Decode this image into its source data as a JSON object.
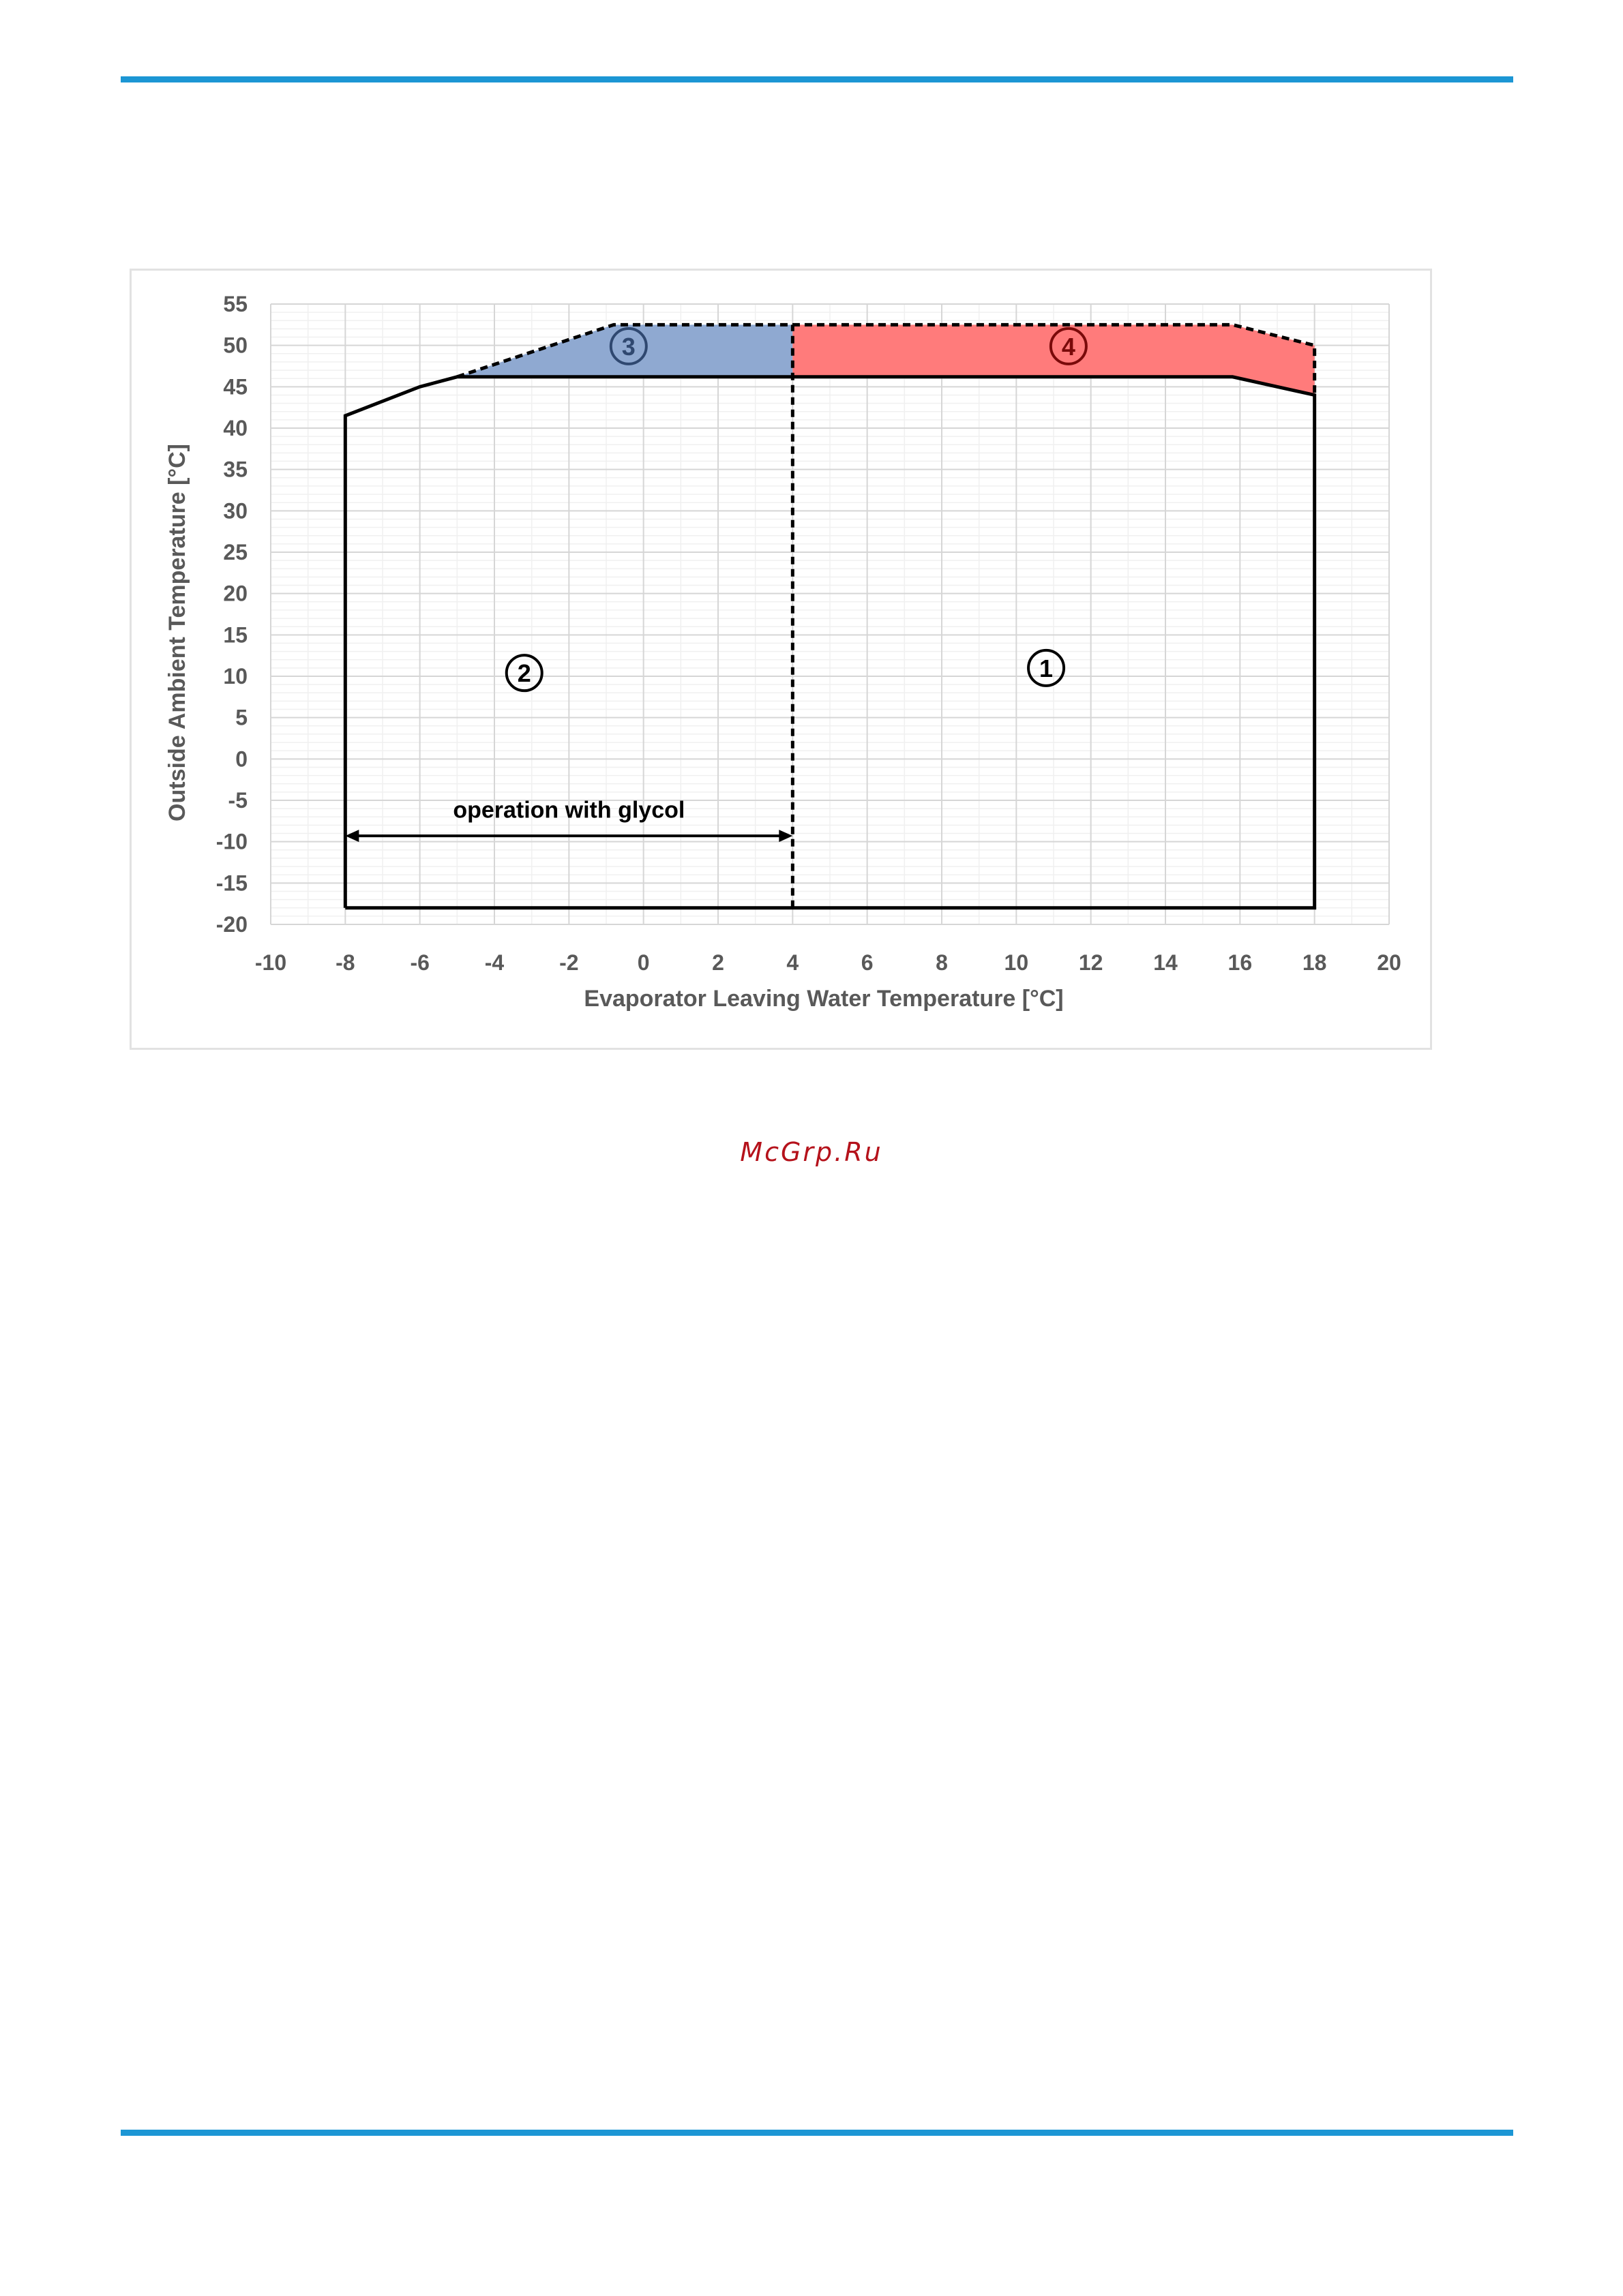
{
  "header": {
    "accent_color": "#1c96d4"
  },
  "watermark": {
    "text": "McGrp.Ru",
    "color": "#b5121b"
  },
  "chart_data": {
    "type": "area",
    "title": "",
    "xlabel": "Evaporator Leaving Water Temperature [°C]",
    "ylabel": "Outside Ambient Temperature [°C]",
    "xlim": [
      -10,
      20
    ],
    "ylim": [
      -20,
      55
    ],
    "x_ticks": [
      -10,
      -8,
      -6,
      -4,
      -2,
      0,
      2,
      4,
      6,
      8,
      10,
      12,
      14,
      16,
      18,
      20
    ],
    "y_ticks": [
      55,
      50,
      45,
      40,
      35,
      30,
      25,
      20,
      15,
      10,
      5,
      0,
      -5,
      -10,
      -15,
      -20
    ],
    "grid": true,
    "regions": [
      {
        "id": "1",
        "label": "①",
        "label_pos": [
          10.8,
          11
        ],
        "fill": "none",
        "points": [
          [
            4,
            -18
          ],
          [
            18,
            -18
          ],
          [
            18,
            44
          ],
          [
            15.8,
            46.2
          ],
          [
            4,
            46.2
          ]
        ]
      },
      {
        "id": "2",
        "label": "②",
        "label_pos": [
          -3.2,
          10.4
        ],
        "fill": "none",
        "points": [
          [
            -8,
            -18
          ],
          [
            4,
            -18
          ],
          [
            4,
            46.2
          ],
          [
            -5,
            46.2
          ],
          [
            -6,
            45
          ],
          [
            -8,
            41.5
          ]
        ]
      },
      {
        "id": "3",
        "label": "③",
        "label_pos": [
          -0.4,
          49.9
        ],
        "fill": "#8fa9d1",
        "points": [
          [
            -5,
            46.2
          ],
          [
            -0.8,
            52.5
          ],
          [
            4,
            52.5
          ],
          [
            4,
            46.2
          ]
        ]
      },
      {
        "id": "4",
        "label": "④",
        "label_pos": [
          11.4,
          49.9
        ],
        "fill": "#ff7b7b",
        "points": [
          [
            4,
            46.2
          ],
          [
            4,
            52.5
          ],
          [
            15.8,
            52.5
          ],
          [
            18,
            50
          ],
          [
            18,
            44
          ],
          [
            15.8,
            46.2
          ]
        ]
      }
    ],
    "boundaries": [
      {
        "style": "solid",
        "points": [
          [
            -8,
            -18
          ],
          [
            18,
            -18
          ],
          [
            18,
            44
          ],
          [
            15.8,
            46.2
          ],
          [
            -5,
            46.2
          ],
          [
            -6,
            45
          ],
          [
            -8,
            41.5
          ],
          [
            -8,
            -18
          ]
        ]
      },
      {
        "style": "dashed",
        "points": [
          [
            -5,
            46.2
          ],
          [
            -0.8,
            52.5
          ],
          [
            15.8,
            52.5
          ],
          [
            18,
            50
          ],
          [
            18,
            44
          ]
        ]
      },
      {
        "style": "dashed",
        "points": [
          [
            4,
            -18
          ],
          [
            4,
            52.5
          ]
        ]
      }
    ],
    "annotations": [
      {
        "text": "operation with glycol",
        "arrow_from": [
          -8,
          -9.3
        ],
        "arrow_to": [
          4,
          -9.3
        ],
        "text_pos": [
          -2,
          -7.1
        ]
      }
    ]
  }
}
